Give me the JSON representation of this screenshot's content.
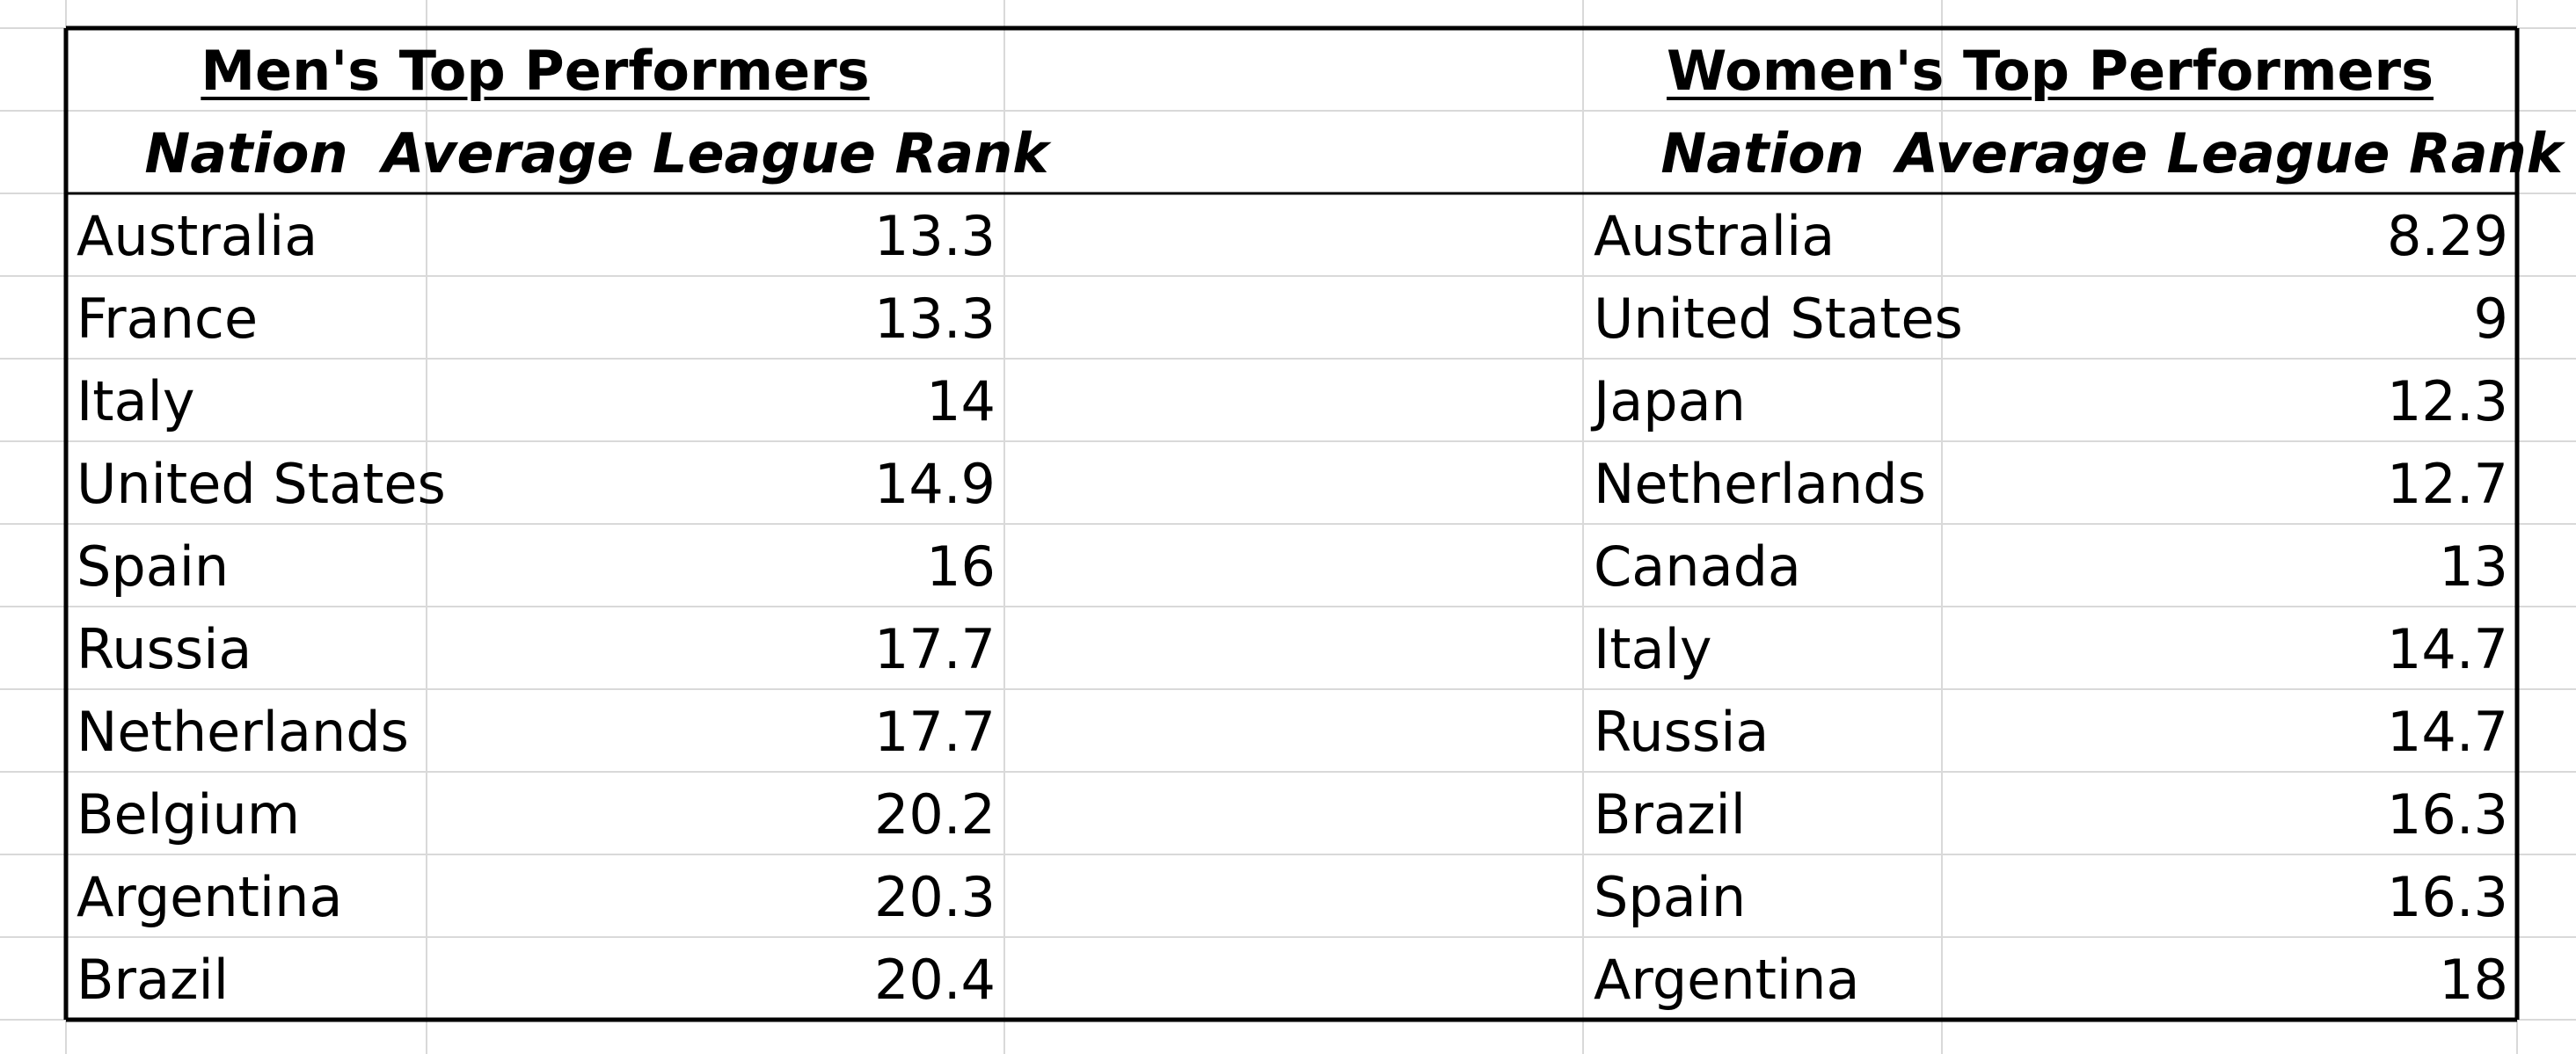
{
  "sheet": {
    "men": {
      "title": "Men's Top Performers",
      "headers": {
        "nation": "Nation",
        "rank": "Average League Rank"
      },
      "rows": [
        {
          "nation": "Australia",
          "rank": "13.3"
        },
        {
          "nation": "France",
          "rank": "13.3"
        },
        {
          "nation": "Italy",
          "rank": "14"
        },
        {
          "nation": "United States",
          "rank": "14.9"
        },
        {
          "nation": "Spain",
          "rank": "16"
        },
        {
          "nation": "Russia",
          "rank": "17.7"
        },
        {
          "nation": "Netherlands",
          "rank": "17.7"
        },
        {
          "nation": "Belgium",
          "rank": "20.2"
        },
        {
          "nation": "Argentina",
          "rank": "20.3"
        },
        {
          "nation": "Brazil",
          "rank": "20.4"
        }
      ]
    },
    "women": {
      "title": "Women's Top Performers",
      "headers": {
        "nation": "Nation",
        "rank": "Average League Rank"
      },
      "rows": [
        {
          "nation": "Australia",
          "rank": "8.29"
        },
        {
          "nation": "United States",
          "rank": "9"
        },
        {
          "nation": "Japan",
          "rank": "12.3"
        },
        {
          "nation": "Netherlands",
          "rank": "12.7"
        },
        {
          "nation": "Canada",
          "rank": "13"
        },
        {
          "nation": "Italy",
          "rank": "14.7"
        },
        {
          "nation": "Russia",
          "rank": "14.7"
        },
        {
          "nation": "Brazil",
          "rank": "16.3"
        },
        {
          "nation": "Spain",
          "rank": "16.3"
        },
        {
          "nation": "Argentina",
          "rank": "18"
        }
      ]
    }
  },
  "colors": {
    "gridline": "#d9d9d9",
    "border": "#000000",
    "text": "#000000"
  }
}
